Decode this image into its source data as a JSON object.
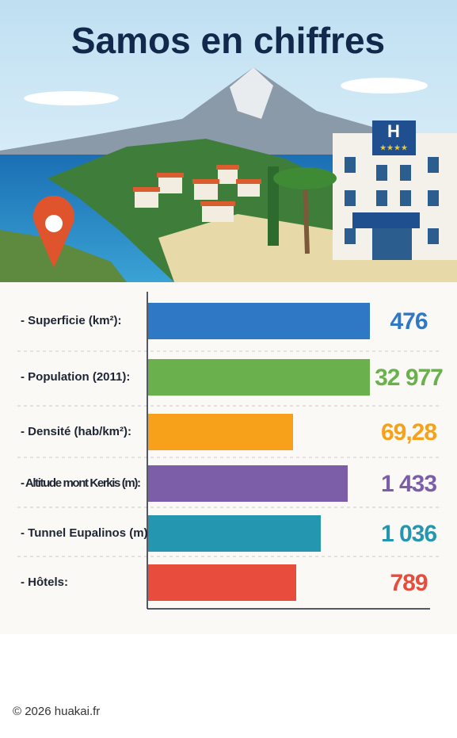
{
  "title": "Samos en chiffres",
  "rows": [
    {
      "label": "- Superficie (km²):",
      "value": "476"
    },
    {
      "label": "- Population (2011):",
      "value": "32 977"
    },
    {
      "label": "- Densité (hab/km²):",
      "value": "69,28"
    },
    {
      "label": "- Altitude mont Kerkis (m):",
      "value": "1 433"
    },
    {
      "label": "- Tunnel Eupalinos (m):",
      "value": "1 036"
    },
    {
      "label": "- Hôtels:",
      "value": "789"
    }
  ],
  "hotel_sign": "H",
  "footer": "© 2026 huakai.fr"
}
